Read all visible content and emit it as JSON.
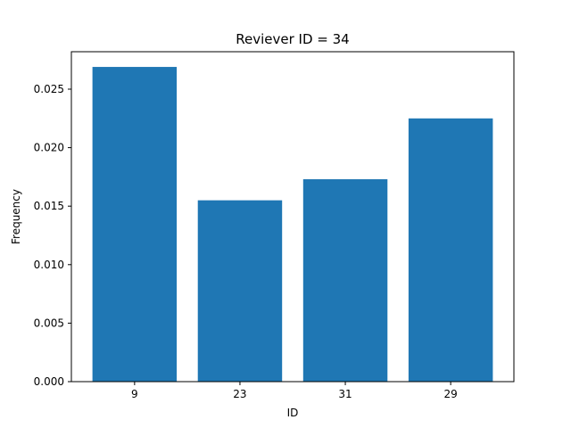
{
  "chart_data": {
    "type": "bar",
    "title": "Reviever ID = 34",
    "xlabel": "ID",
    "ylabel": "Frequency",
    "categories": [
      "9",
      "23",
      "31",
      "29"
    ],
    "values": [
      0.0269,
      0.0155,
      0.0173,
      0.0225
    ],
    "ylim": [
      0,
      0.0282
    ],
    "yticks": [
      "0.000",
      "0.005",
      "0.010",
      "0.015",
      "0.020",
      "0.025"
    ],
    "bar_color": "#1f77b4",
    "grid": false,
    "legend": "none"
  }
}
